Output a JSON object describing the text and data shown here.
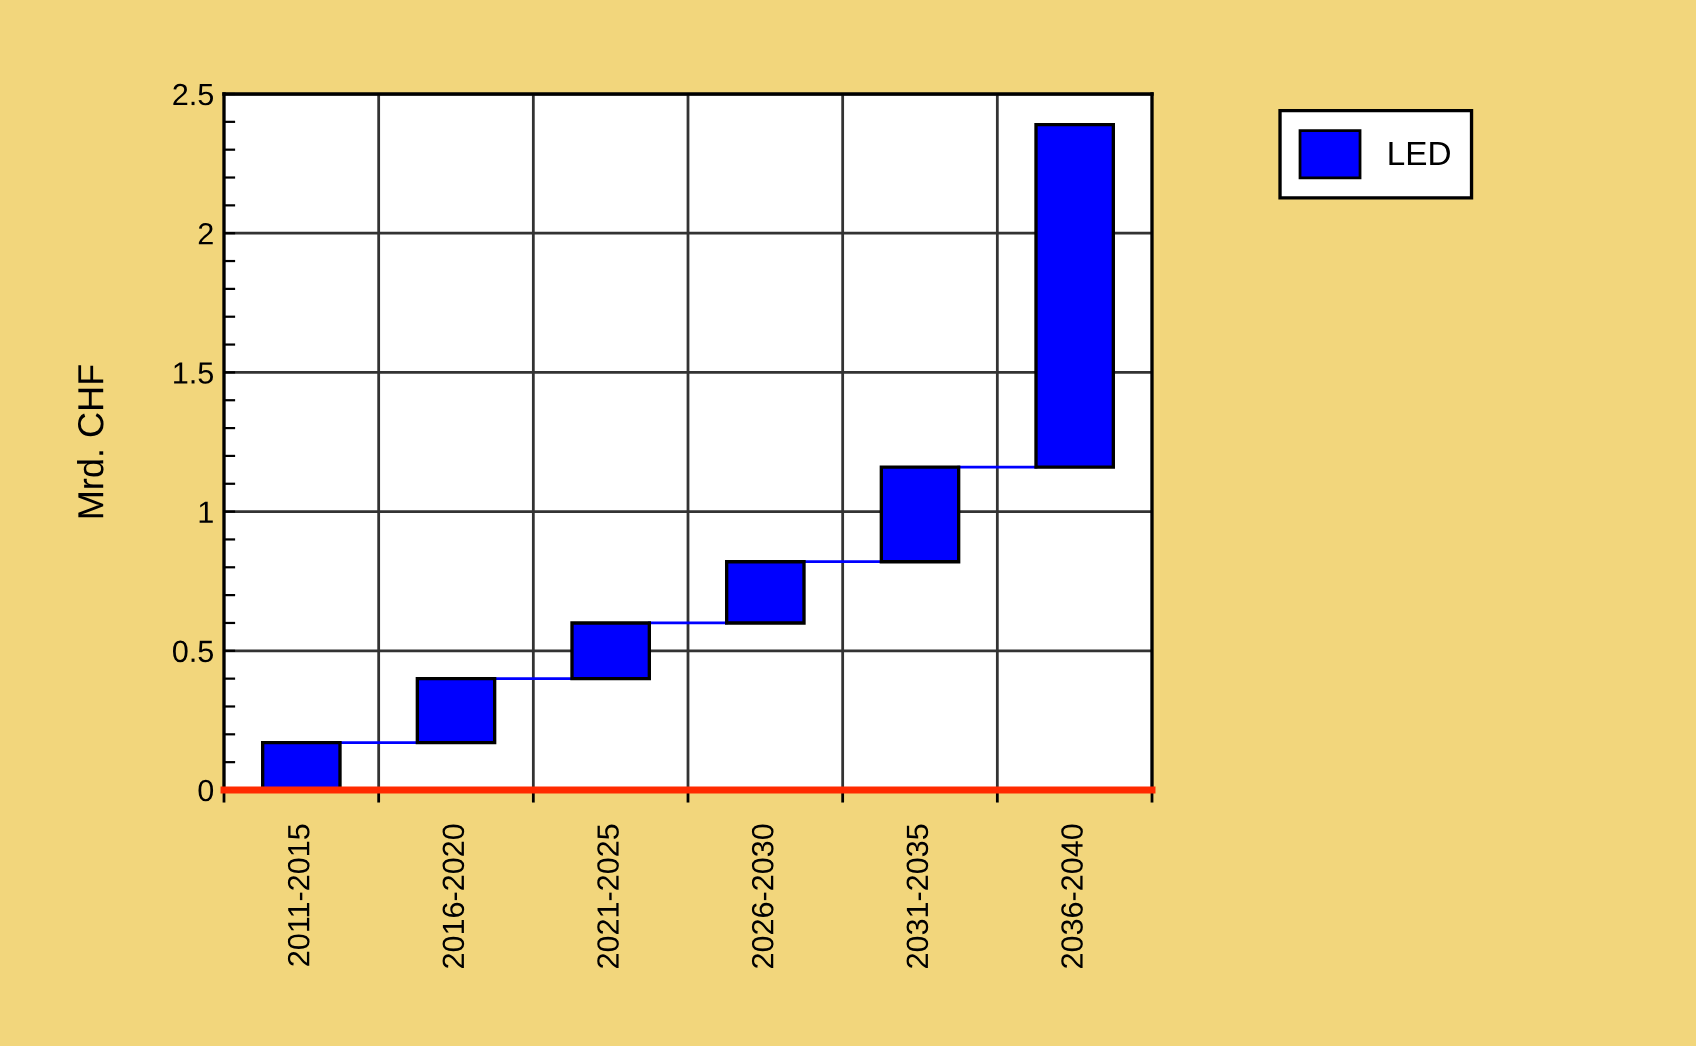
{
  "chart_data": {
    "type": "bar",
    "ylabel": "Mrd. CHF",
    "categories": [
      "2011-2015",
      "2016-2020",
      "2021-2025",
      "2026-2030",
      "2031-2035",
      "2036-2040"
    ],
    "series": [
      {
        "name": "LED",
        "color": "#0000ff",
        "values": [
          0.17,
          0.23,
          0.2,
          0.22,
          0.34,
          1.23
        ],
        "base": [
          0,
          0.17,
          0.4,
          0.6,
          0.82,
          1.16
        ]
      }
    ],
    "ylim": [
      0,
      2.5
    ],
    "yticks": [
      0,
      {
        "value": 0.1,
        "label": null
      },
      {
        "value": 0.2,
        "label": null
      },
      {
        "value": 0.3,
        "label": null
      },
      {
        "value": 0.4,
        "label": null
      },
      0.5,
      {
        "value": 0.6,
        "label": null
      },
      {
        "value": 0.7,
        "label": null
      },
      {
        "value": 0.8,
        "label": null
      },
      {
        "value": 0.9,
        "label": null
      },
      1,
      {
        "value": 1.1,
        "label": null
      },
      {
        "value": 1.2,
        "label": null
      },
      {
        "value": 1.3,
        "label": null
      },
      {
        "value": 1.4,
        "label": null
      },
      1.5,
      {
        "value": 1.6,
        "label": null
      },
      {
        "value": 1.7,
        "label": null
      },
      {
        "value": 1.8,
        "label": null
      },
      {
        "value": 1.9,
        "label": null
      },
      2,
      {
        "value": 2.1,
        "label": null
      },
      {
        "value": 2.2,
        "label": null
      },
      {
        "value": 2.3,
        "label": null
      },
      {
        "value": 2.4,
        "label": null
      },
      2.5
    ],
    "grid": true,
    "legend": "top right"
  }
}
